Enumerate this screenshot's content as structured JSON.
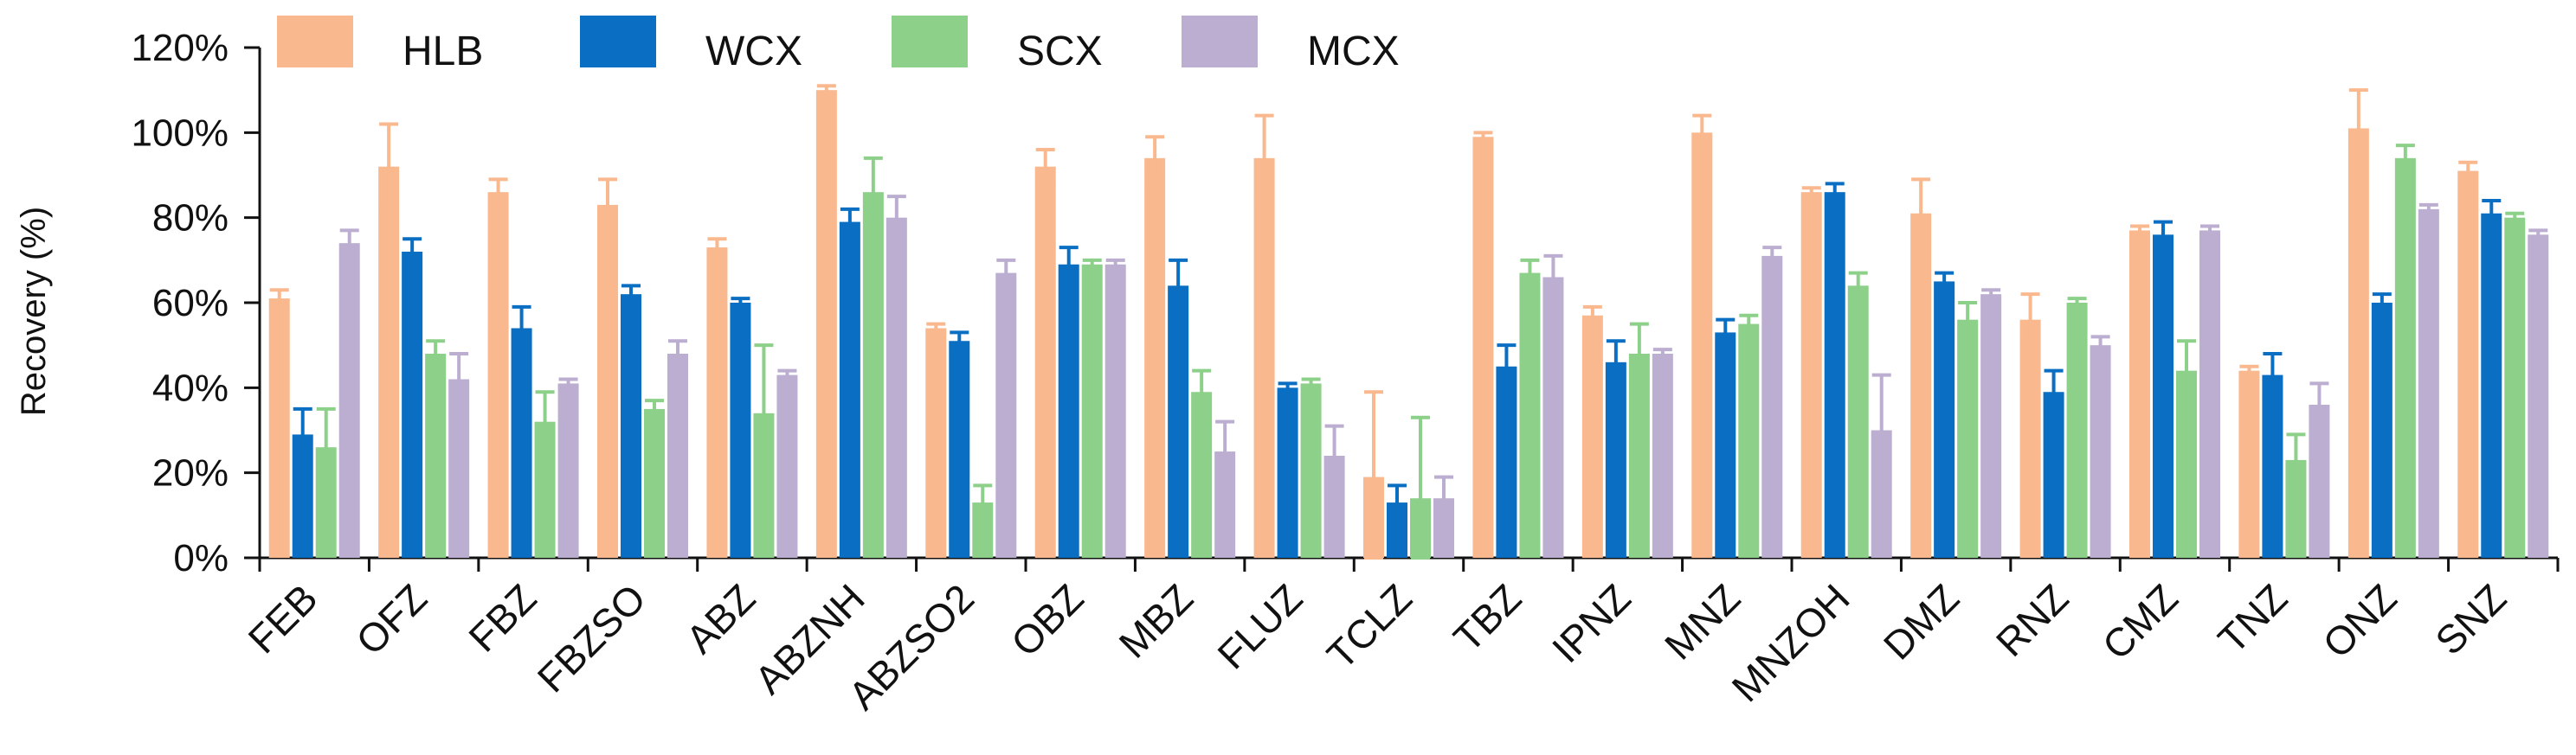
{
  "chart_data": {
    "type": "bar",
    "title": "",
    "xlabel": "",
    "ylabel": "Recovery (%)",
    "ylim": [
      0,
      120
    ],
    "y_ticks": [
      "0%",
      "20%",
      "40%",
      "60%",
      "80%",
      "100%",
      "120%"
    ],
    "y_tick_values": [
      0,
      20,
      40,
      60,
      80,
      100,
      120
    ],
    "legend_position": "top",
    "grid": false,
    "categories": [
      "FEB",
      "OFZ",
      "FBZ",
      "FBZSO",
      "ABZ",
      "ABZNH",
      "ABZSO2",
      "OBZ",
      "MBZ",
      "FLUZ",
      "TCLZ",
      "TBZ",
      "IPNZ",
      "MNZ",
      "MNZOH",
      "DMZ",
      "RNZ",
      "CMZ",
      "TNZ",
      "ONZ",
      "SNZ"
    ],
    "series": [
      {
        "name": "HLB",
        "color": "#F9B88E",
        "values": [
          61,
          92,
          86,
          83,
          73,
          110,
          54,
          92,
          94,
          94,
          19,
          99,
          57,
          100,
          86,
          81,
          56,
          77,
          44,
          101,
          91
        ],
        "errors": [
          2,
          10,
          3,
          6,
          2,
          1,
          1,
          4,
          5,
          10,
          20,
          1,
          2,
          4,
          1,
          8,
          6,
          1,
          1,
          9,
          2
        ]
      },
      {
        "name": "WCX",
        "color": "#0A6EC2",
        "values": [
          29,
          72,
          54,
          62,
          60,
          79,
          51,
          69,
          64,
          40,
          13,
          45,
          46,
          53,
          86,
          65,
          39,
          76,
          43,
          60,
          81
        ],
        "errors": [
          6,
          3,
          5,
          2,
          1,
          3,
          2,
          4,
          6,
          1,
          4,
          5,
          5,
          3,
          2,
          2,
          5,
          3,
          5,
          2,
          3
        ]
      },
      {
        "name": "SCX",
        "color": "#8DD08A",
        "values": [
          26,
          48,
          32,
          35,
          34,
          86,
          13,
          69,
          39,
          41,
          14,
          67,
          48,
          55,
          64,
          56,
          60,
          44,
          23,
          94,
          80
        ],
        "errors": [
          9,
          3,
          7,
          2,
          16,
          8,
          4,
          1,
          5,
          1,
          19,
          3,
          7,
          2,
          3,
          4,
          1,
          7,
          6,
          3,
          1
        ]
      },
      {
        "name": "MCX",
        "color": "#BCAED1",
        "values": [
          74,
          42,
          41,
          48,
          43,
          80,
          67,
          69,
          25,
          24,
          14,
          66,
          48,
          71,
          30,
          62,
          50,
          77,
          36,
          82,
          76
        ],
        "errors": [
          3,
          6,
          1,
          3,
          1,
          5,
          3,
          1,
          7,
          7,
          5,
          5,
          1,
          2,
          13,
          1,
          2,
          1,
          5,
          1,
          1
        ]
      }
    ]
  }
}
